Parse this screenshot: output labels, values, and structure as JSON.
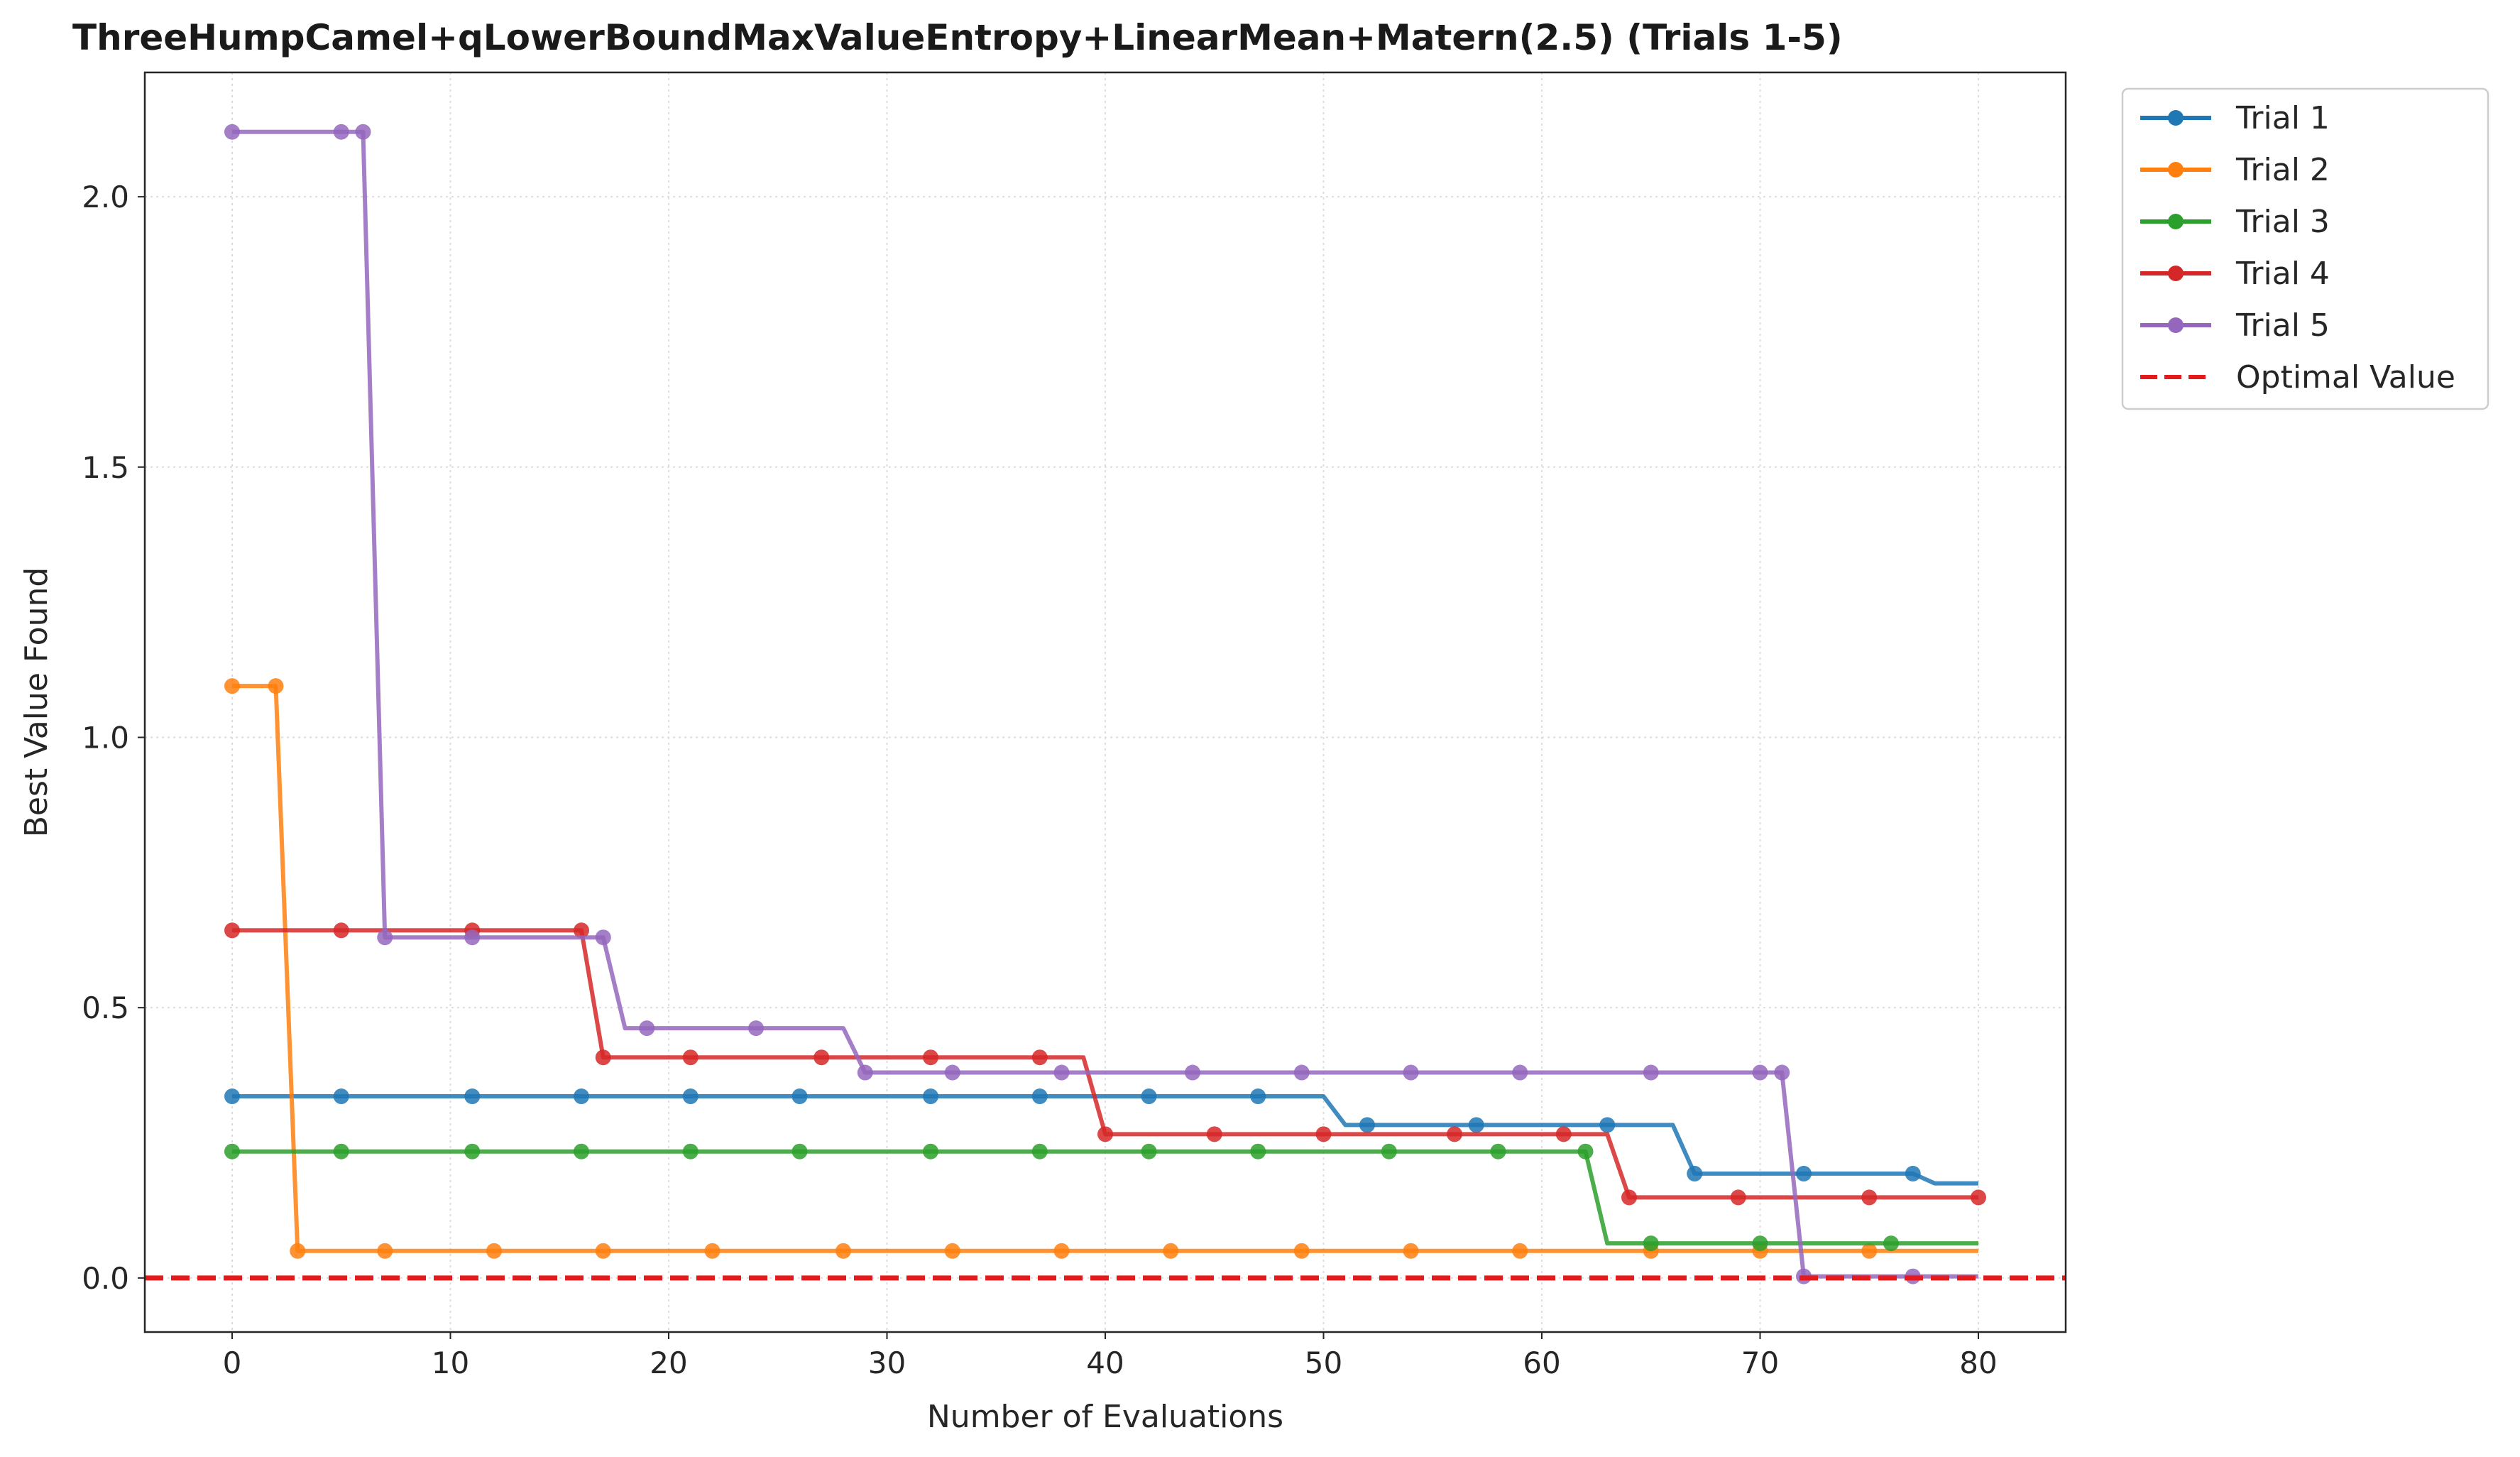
{
  "chart_data": {
    "type": "line",
    "title": "ThreeHumpCamel+qLowerBoundMaxValueEntropy+LinearMean+Matern(2.5) (Trials 1-5)",
    "xlabel": "Number of Evaluations",
    "ylabel": "Best Value Found",
    "xlim": [
      -4,
      84
    ],
    "ylim": [
      -0.1,
      2.23
    ],
    "x_ticks": [
      0,
      10,
      20,
      30,
      40,
      50,
      60,
      70,
      80
    ],
    "x_tick_labels": [
      "0",
      "10",
      "20",
      "30",
      "40",
      "50",
      "60",
      "70",
      "80"
    ],
    "y_ticks": [
      0.0,
      0.5,
      1.0,
      1.5,
      2.0
    ],
    "y_tick_labels": [
      "0.0",
      "0.5",
      "1.0",
      "1.5",
      "2.0"
    ],
    "grid": true,
    "legend_position": "outside-top-right",
    "reference_line": {
      "name": "Optimal Value",
      "y": 0.0,
      "color": "#e41a1c",
      "style": "dashed"
    },
    "series": [
      {
        "name": "Trial 1",
        "color": "#1f77b4",
        "steps": [
          [
            0,
            0.336
          ],
          [
            51,
            0.283
          ],
          [
            67,
            0.193
          ],
          [
            78,
            0.175
          ],
          [
            80,
            0.175
          ]
        ],
        "markers_x": [
          0,
          5,
          11,
          16,
          21,
          26,
          32,
          37,
          42,
          47,
          52,
          57,
          63,
          67,
          72,
          77
        ]
      },
      {
        "name": "Trial 2",
        "color": "#ff7f0e",
        "steps": [
          [
            0,
            1.095
          ],
          [
            3,
            0.05
          ],
          [
            80,
            0.05
          ]
        ],
        "markers_x": [
          0,
          2,
          3,
          7,
          12,
          17,
          22,
          28,
          33,
          38,
          43,
          49,
          54,
          59,
          65,
          70,
          75
        ]
      },
      {
        "name": "Trial 3",
        "color": "#2ca02c",
        "steps": [
          [
            0,
            0.234
          ],
          [
            63,
            0.064
          ],
          [
            80,
            0.064
          ]
        ],
        "markers_x": [
          0,
          5,
          11,
          16,
          21,
          26,
          32,
          37,
          42,
          47,
          53,
          58,
          62,
          65,
          70,
          76
        ]
      },
      {
        "name": "Trial 4",
        "color": "#d62728",
        "steps": [
          [
            0,
            0.643
          ],
          [
            17,
            0.408
          ],
          [
            40,
            0.266
          ],
          [
            64,
            0.149
          ],
          [
            80,
            0.149
          ]
        ],
        "markers_x": [
          0,
          5,
          11,
          16,
          17,
          21,
          27,
          32,
          37,
          40,
          45,
          50,
          56,
          61,
          64,
          69,
          75,
          80
        ]
      },
      {
        "name": "Trial 5",
        "color": "#9467bd",
        "steps": [
          [
            0,
            2.12
          ],
          [
            7,
            0.63
          ],
          [
            18,
            0.462
          ],
          [
            29,
            0.38
          ],
          [
            72,
            0.003
          ],
          [
            80,
            0.003
          ]
        ],
        "markers_x": [
          0,
          5,
          6,
          7,
          11,
          17,
          19,
          24,
          29,
          33,
          38,
          44,
          49,
          54,
          59,
          65,
          70,
          71,
          72,
          77
        ]
      }
    ]
  }
}
